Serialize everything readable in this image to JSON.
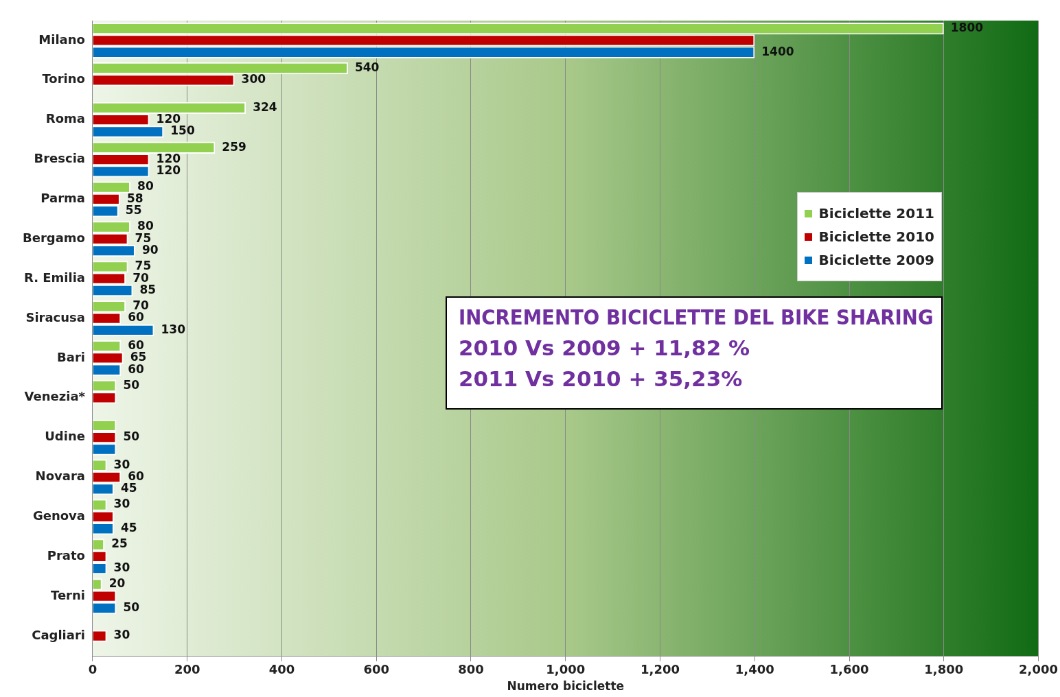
{
  "chart_data": {
    "type": "bar",
    "orientation": "horizontal",
    "xlabel": "Numero biciclette",
    "categories": [
      "Milano",
      "Torino",
      "Roma",
      "Brescia",
      "Parma",
      "Bergamo",
      "R. Emilia",
      "Siracusa",
      "Bari",
      "Venezia*",
      "Udine",
      "Novara",
      "Genova",
      "Prato",
      "Terni",
      "Cagliari"
    ],
    "series": [
      {
        "name": "Biciclette 2011",
        "color": "#92d050",
        "values": [
          1800,
          540,
          324,
          259,
          80,
          80,
          75,
          70,
          60,
          50,
          50,
          30,
          30,
          25,
          20,
          null
        ],
        "value_labels": [
          "1800",
          "540",
          "324",
          "259",
          "80",
          "80",
          "75",
          "70",
          "60",
          "50",
          null,
          "30",
          "30",
          "25",
          "20",
          null
        ]
      },
      {
        "name": "Biciclette 2010",
        "color": "#c00000",
        "values": [
          1400,
          300,
          120,
          120,
          58,
          75,
          70,
          60,
          65,
          50,
          50,
          60,
          45,
          30,
          50,
          30
        ],
        "value_labels": [
          null,
          "300",
          "120",
          "120",
          "58",
          "75",
          "70",
          "60",
          "65",
          null,
          "50",
          "60",
          null,
          null,
          null,
          "30"
        ]
      },
      {
        "name": "Biciclette 2009",
        "color": "#0070c0",
        "values": [
          1400,
          null,
          150,
          120,
          55,
          90,
          85,
          130,
          60,
          null,
          50,
          45,
          45,
          30,
          50,
          null
        ],
        "value_labels": [
          "1400",
          null,
          "150",
          "120",
          "55",
          "90",
          "85",
          "130",
          "60",
          null,
          null,
          "45",
          "45",
          "30",
          "50",
          null
        ]
      }
    ],
    "xlim": [
      0,
      2000
    ],
    "xticks": [
      0,
      200,
      400,
      600,
      800,
      {
        "value": 1000,
        "label": "1,000"
      },
      {
        "value": 1200,
        "label": "1,200"
      },
      {
        "value": 1400,
        "label": "1,400"
      },
      {
        "value": 1600,
        "label": "1,600"
      },
      {
        "value": 1800,
        "label": "1,800"
      },
      {
        "value": 2000,
        "label": "2,000"
      }
    ],
    "grid": "x",
    "legend": "right",
    "annotations": [
      "INCREMENTO BICICLETTE DEL BIKE SHARING\n2010 Vs 2009 + 11,82 %\n2011 Vs 2010 + 35,23%"
    ]
  }
}
